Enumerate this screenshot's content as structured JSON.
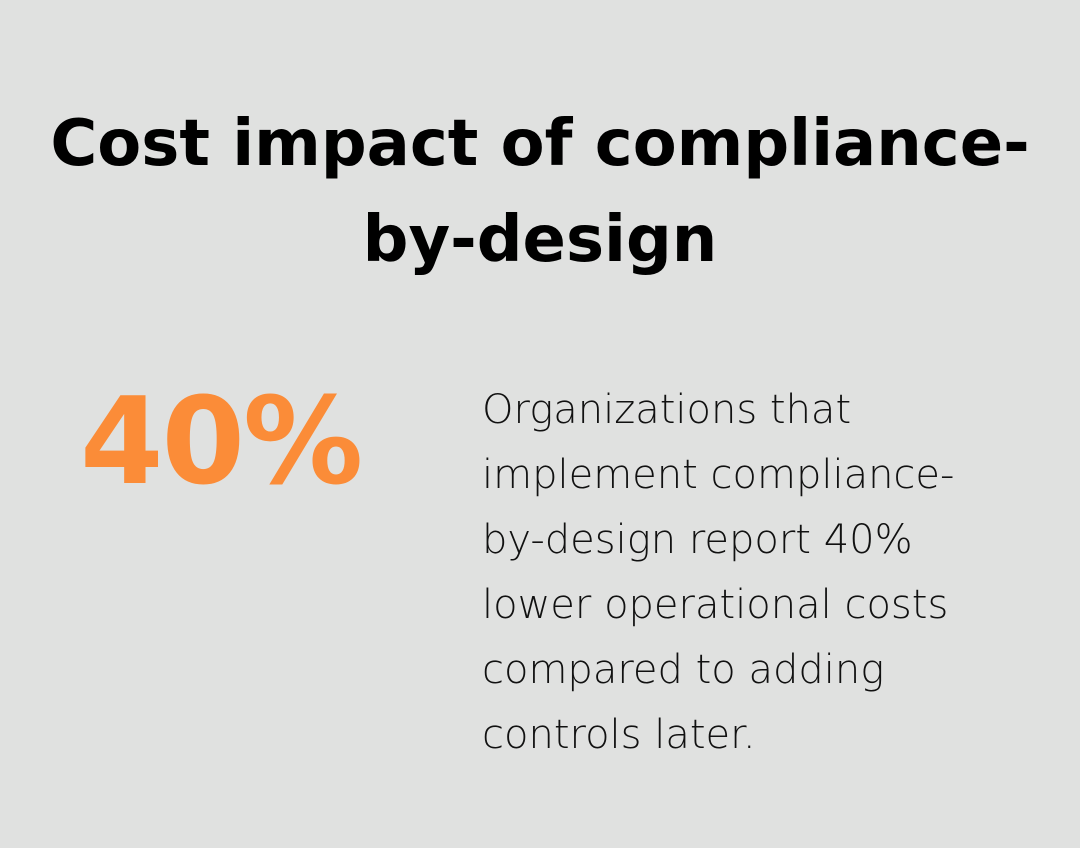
{
  "title": "Cost impact of compliance-by-design",
  "stat": {
    "value": "40%",
    "color": "#fb8c38"
  },
  "description": "Organizations that implement compliance-by-design report 40% lower operational costs compared to adding controls later."
}
